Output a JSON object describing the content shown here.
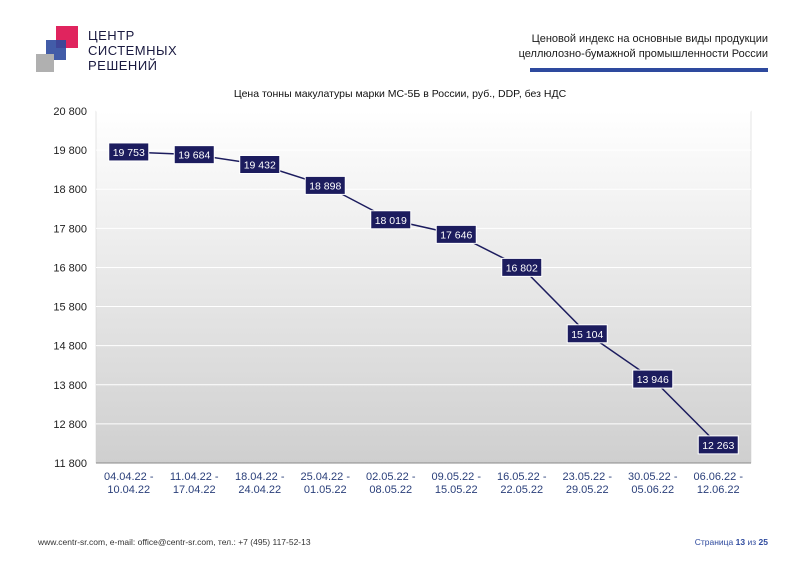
{
  "header": {
    "logo_lines": [
      "ЦЕНТР",
      "СИСТЕМНЫХ",
      "РЕШЕНИЙ"
    ],
    "doc_title_line1": "Ценовой  индекс  на  основные виды продукции",
    "doc_title_line2": "целлюлозно-бумажной промышленности России"
  },
  "colors": {
    "accent": "#2e4a9e",
    "marker": "#1c1c5e",
    "logo_red": "#e0245e",
    "logo_blue": "#2e4a9e",
    "logo_gray": "#b0b0b0"
  },
  "chart_data": {
    "type": "line",
    "title": "Цена тонны макулатуры марки МС-5Б в России, руб., DDP, без НДС",
    "xlabel": "",
    "ylabel": "",
    "categories": [
      "04.04.22 - 10.04.22",
      "11.04.22 - 17.04.22",
      "18.04.22 - 24.04.22",
      "25.04.22 - 01.05.22",
      "02.05.22 - 08.05.22",
      "09.05.22 - 15.05.22",
      "16.05.22 - 22.05.22",
      "23.05.22 - 29.05.22",
      "30.05.22 - 05.06.22",
      "06.06.22 - 12.06.22"
    ],
    "values": [
      19753,
      19684,
      19432,
      18898,
      18019,
      17646,
      16802,
      15104,
      13946,
      12263
    ],
    "value_labels": [
      "19 753",
      "19 684",
      "19 432",
      "18 898",
      "18 019",
      "17 646",
      "16 802",
      "15 104",
      "13 946",
      "12 263"
    ],
    "ylim": [
      11800,
      20800
    ],
    "yticks": [
      11800,
      12800,
      13800,
      14800,
      15800,
      16800,
      17800,
      18800,
      19800,
      20800
    ],
    "ytick_labels": [
      "11 800",
      "12 800",
      "13 800",
      "14 800",
      "15 800",
      "16 800",
      "17 800",
      "18 800",
      "19 800",
      "20 800"
    ],
    "grid": true,
    "legend": "none"
  },
  "footer": {
    "contacts": "www.centr-sr.com, e-mail: office@centr-sr.com, тел.: +7 (495) 117-52-13",
    "page_word": "Страница",
    "page_current": "13",
    "page_of": "из",
    "page_total": "25"
  }
}
